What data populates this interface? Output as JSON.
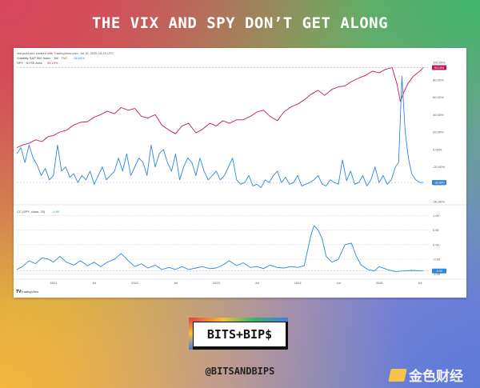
{
  "headline": "THE VIX AND SPY DON’T GET ALONG",
  "header_line": "stanavk1sh4 created with TradingView.com, Jul 15, 2025 18:23 UTC",
  "tv_mark": "TradingView",
  "logo_text": "BITS+BIP$",
  "handle": "@BITSANDBIPS",
  "watermark": "金色财经",
  "colors": {
    "spy": "#c2185b",
    "vix": "#2e86de",
    "cc": "#2e86de"
  },
  "chart_data": [
    {
      "type": "line",
      "legend": [
        {
          "label": "Volatility S&P 500 Index · 1W · TVC",
          "value": "-38.68%"
        },
        {
          "label": "SPY · NYSE Arca",
          "value": "94.19%"
        }
      ],
      "y_ticks": [
        "100.00%",
        "80.00%",
        "60.00%",
        "40.00%",
        "20.00%",
        "0.00%",
        "-20.00%",
        "-40.00%",
        "-60.00%"
      ],
      "ylim": [
        -60,
        100
      ],
      "x_ticks": [
        "2021",
        "Jul",
        "2022",
        "Jul",
        "2023",
        "Jul",
        "2024",
        "Jul",
        "2025",
        "Jul"
      ],
      "x_tick_pos": [
        2021.0,
        2021.5,
        2022.0,
        2022.5,
        2023.0,
        2023.5,
        2024.0,
        2024.5,
        2025.0,
        2025.5
      ],
      "xlim": [
        2020.55,
        2025.62
      ],
      "series": [
        {
          "name": "SPY · NYSE Arca",
          "color": "#c2185b",
          "x": [
            2020.55,
            2020.62,
            2020.7,
            2020.78,
            2020.86,
            2020.94,
            2021.0,
            2021.08,
            2021.16,
            2021.25,
            2021.33,
            2021.42,
            2021.5,
            2021.58,
            2021.66,
            2021.75,
            2021.83,
            2021.92,
            2022.0,
            2022.08,
            2022.16,
            2022.25,
            2022.33,
            2022.42,
            2022.5,
            2022.58,
            2022.66,
            2022.75,
            2022.83,
            2022.92,
            2023.0,
            2023.08,
            2023.16,
            2023.25,
            2023.33,
            2023.42,
            2023.5,
            2023.58,
            2023.66,
            2023.75,
            2023.83,
            2023.92,
            2024.0,
            2024.08,
            2024.16,
            2024.25,
            2024.33,
            2024.42,
            2024.5,
            2024.58,
            2024.66,
            2024.75,
            2024.83,
            2024.92,
            2025.0,
            2025.08,
            2025.16,
            2025.22,
            2025.26,
            2025.3,
            2025.35,
            2025.42,
            2025.5,
            2025.54
          ],
          "values": [
            2,
            5,
            7,
            11,
            9,
            15,
            16,
            20,
            22,
            28,
            31,
            32,
            37,
            40,
            44,
            41,
            48,
            45,
            47,
            38,
            36,
            40,
            28,
            22,
            18,
            27,
            30,
            19,
            23,
            30,
            27,
            33,
            30,
            34,
            34,
            38,
            43,
            45,
            38,
            33,
            43,
            49,
            52,
            57,
            63,
            68,
            62,
            69,
            72,
            73,
            78,
            82,
            85,
            90,
            88,
            92,
            94,
            75,
            55,
            65,
            75,
            84,
            90,
            94
          ]
        },
        {
          "name": "Volatility S&P 500 Index",
          "color": "#2e86de",
          "x": [
            2020.55,
            2020.6,
            2020.65,
            2020.7,
            2020.75,
            2020.8,
            2020.85,
            2020.9,
            2020.95,
            2021.0,
            2021.05,
            2021.1,
            2021.15,
            2021.2,
            2021.25,
            2021.3,
            2021.35,
            2021.4,
            2021.45,
            2021.5,
            2021.55,
            2021.6,
            2021.65,
            2021.7,
            2021.75,
            2021.8,
            2021.85,
            2021.9,
            2021.95,
            2022.0,
            2022.05,
            2022.1,
            2022.15,
            2022.2,
            2022.25,
            2022.3,
            2022.35,
            2022.4,
            2022.45,
            2022.5,
            2022.55,
            2022.6,
            2022.65,
            2022.7,
            2022.75,
            2022.8,
            2022.85,
            2022.9,
            2022.95,
            2023.0,
            2023.05,
            2023.1,
            2023.15,
            2023.2,
            2023.25,
            2023.3,
            2023.35,
            2023.4,
            2023.45,
            2023.5,
            2023.55,
            2023.6,
            2023.65,
            2023.7,
            2023.75,
            2023.8,
            2023.85,
            2023.9,
            2023.95,
            2024.0,
            2024.05,
            2024.1,
            2024.15,
            2024.2,
            2024.25,
            2024.3,
            2024.35,
            2024.4,
            2024.45,
            2024.5,
            2024.55,
            2024.6,
            2024.65,
            2024.7,
            2024.75,
            2024.8,
            2024.85,
            2024.9,
            2024.95,
            2025.0,
            2025.05,
            2025.1,
            2025.15,
            2025.2,
            2025.24,
            2025.28,
            2025.32,
            2025.36,
            2025.4,
            2025.45,
            2025.5,
            2025.54
          ],
          "values": [
            -5,
            2,
            -15,
            5,
            -10,
            -18,
            -30,
            -22,
            -35,
            -30,
            5,
            -25,
            -20,
            -32,
            -28,
            -38,
            -30,
            -35,
            -25,
            -40,
            -30,
            -20,
            -35,
            -30,
            -25,
            -10,
            -25,
            -5,
            -30,
            -20,
            -10,
            -15,
            -30,
            5,
            -20,
            -5,
            0,
            -15,
            -25,
            -5,
            -35,
            -20,
            -10,
            -15,
            -30,
            -10,
            -25,
            -35,
            -30,
            -25,
            -35,
            -30,
            -20,
            -10,
            -35,
            -40,
            -38,
            -30,
            -42,
            -40,
            -44,
            -35,
            -38,
            -30,
            -25,
            -38,
            -32,
            -40,
            -38,
            -30,
            -42,
            -40,
            -38,
            -35,
            -30,
            -40,
            -42,
            -35,
            -38,
            -40,
            -12,
            -36,
            -25,
            -40,
            -38,
            -30,
            -42,
            -35,
            -20,
            -38,
            -30,
            -40,
            -35,
            -20,
            -15,
            84,
            20,
            -10,
            -28,
            -35,
            -38,
            -38
          ]
        }
      ]
    },
    {
      "type": "line",
      "legend": [
        {
          "label": "CC (SPY, close, 20)",
          "value": "-0.90"
        }
      ],
      "y_ticks": [
        "1.00",
        "0.50",
        "0.00",
        "-0.50",
        "-1.00"
      ],
      "ylim": [
        -1.1,
        1.2
      ],
      "x_ticks": [
        "2021",
        "Jul",
        "2022",
        "Jul",
        "2023",
        "Jul",
        "2024",
        "Jul",
        "2025",
        "Jul"
      ],
      "x_tick_pos": [
        2021.0,
        2021.5,
        2022.0,
        2022.5,
        2023.0,
        2023.5,
        2024.0,
        2024.5,
        2025.0,
        2025.5
      ],
      "xlim": [
        2020.55,
        2025.62
      ],
      "series": [
        {
          "name": "CC (SPY, close, 20)",
          "color": "#2e86de",
          "x": [
            2020.55,
            2020.62,
            2020.7,
            2020.78,
            2020.86,
            2020.94,
            2021.0,
            2021.08,
            2021.16,
            2021.25,
            2021.33,
            2021.42,
            2021.5,
            2021.58,
            2021.66,
            2021.75,
            2021.83,
            2021.92,
            2022.0,
            2022.08,
            2022.16,
            2022.25,
            2022.33,
            2022.42,
            2022.5,
            2022.58,
            2022.66,
            2022.75,
            2022.83,
            2022.92,
            2023.0,
            2023.08,
            2023.16,
            2023.25,
            2023.33,
            2023.42,
            2023.5,
            2023.58,
            2023.66,
            2023.75,
            2023.83,
            2023.92,
            2024.0,
            2024.08,
            2024.16,
            2024.2,
            2024.25,
            2024.3,
            2024.35,
            2024.42,
            2024.5,
            2024.58,
            2024.66,
            2024.72,
            2024.78,
            2024.86,
            2024.94,
            2025.0,
            2025.1,
            2025.2,
            2025.3,
            2025.4,
            2025.54
          ],
          "values": [
            -0.85,
            -0.75,
            -0.55,
            -0.65,
            -0.45,
            -0.5,
            -0.6,
            -0.4,
            -0.6,
            -0.7,
            -0.55,
            -0.72,
            -0.6,
            -0.75,
            -0.6,
            -0.5,
            -0.3,
            -0.55,
            -0.75,
            -0.65,
            -0.8,
            -0.7,
            -0.85,
            -0.78,
            -0.85,
            -0.75,
            -0.85,
            -0.8,
            -0.75,
            -0.82,
            -0.8,
            -0.7,
            -0.55,
            -0.72,
            -0.62,
            -0.78,
            -0.75,
            -0.82,
            -0.7,
            -0.78,
            -0.8,
            -0.75,
            -0.78,
            -0.72,
            0.3,
            0.65,
            0.5,
            0.2,
            -0.4,
            -0.6,
            -0.5,
            0.0,
            0.05,
            -0.4,
            -0.7,
            -0.85,
            -0.9,
            -0.75,
            -0.85,
            -0.92,
            -0.9,
            -0.88,
            -0.9
          ]
        }
      ]
    }
  ]
}
